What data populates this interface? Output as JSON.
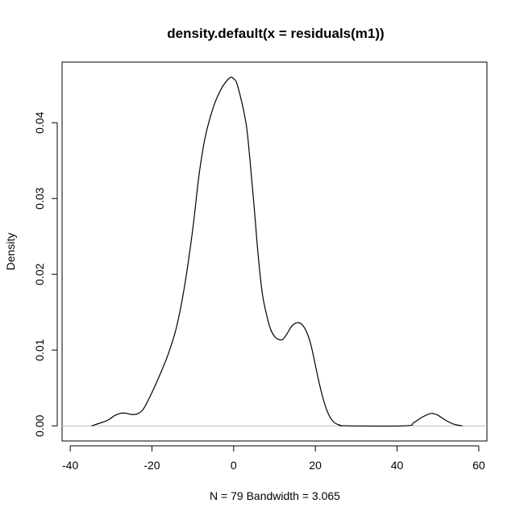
{
  "chart_data": {
    "type": "line",
    "title": "density.default(x = residuals(m1))",
    "xlabel": "N = 79   Bandwidth = 3.065",
    "ylabel": "Density",
    "xlim": [
      -42,
      62
    ],
    "ylim": [
      -0.002,
      0.048
    ],
    "x_ticks": [
      -40,
      -20,
      0,
      20,
      40,
      60
    ],
    "x_tick_labels": [
      "-40",
      "-20",
      "0",
      "20",
      "40",
      "60"
    ],
    "y_ticks": [
      0.0,
      0.01,
      0.02,
      0.03,
      0.04
    ],
    "y_tick_labels": [
      "0.00",
      "0.01",
      "0.02",
      "0.03",
      "0.04"
    ],
    "baseline": 0,
    "baseline_color": "#bebebe",
    "line_color": "#000000",
    "series": [
      {
        "name": "density",
        "x": [
          -34.8,
          -31,
          -29,
          -27,
          -25,
          -23.5,
          -22,
          -20,
          -18,
          -16,
          -14,
          -12,
          -10,
          -8.5,
          -7,
          -5,
          -3,
          -1,
          0,
          1,
          3,
          4,
          5,
          6,
          7,
          8,
          9,
          10,
          11,
          12,
          13,
          14,
          15,
          16,
          17,
          18,
          19,
          20,
          21,
          22,
          23,
          24,
          25,
          26,
          27.5,
          42,
          44,
          46,
          48,
          49,
          50,
          52,
          54,
          56
        ],
        "y": [
          0.0,
          0.0007,
          0.0014,
          0.0017,
          0.0015,
          0.0016,
          0.0023,
          0.0044,
          0.0068,
          0.0095,
          0.013,
          0.0185,
          0.026,
          0.033,
          0.038,
          0.042,
          0.0445,
          0.0459,
          0.0458,
          0.0448,
          0.04,
          0.035,
          0.029,
          0.0225,
          0.0175,
          0.0148,
          0.0128,
          0.0118,
          0.0114,
          0.0114,
          0.0121,
          0.013,
          0.0135,
          0.0136,
          0.0132,
          0.0122,
          0.0105,
          0.008,
          0.0055,
          0.0034,
          0.0018,
          0.0008,
          0.0003,
          0.0001,
          0.0,
          0.0,
          0.0004,
          0.0011,
          0.0016,
          0.0016,
          0.0014,
          0.0007,
          0.0002,
          0.0
        ]
      }
    ]
  }
}
